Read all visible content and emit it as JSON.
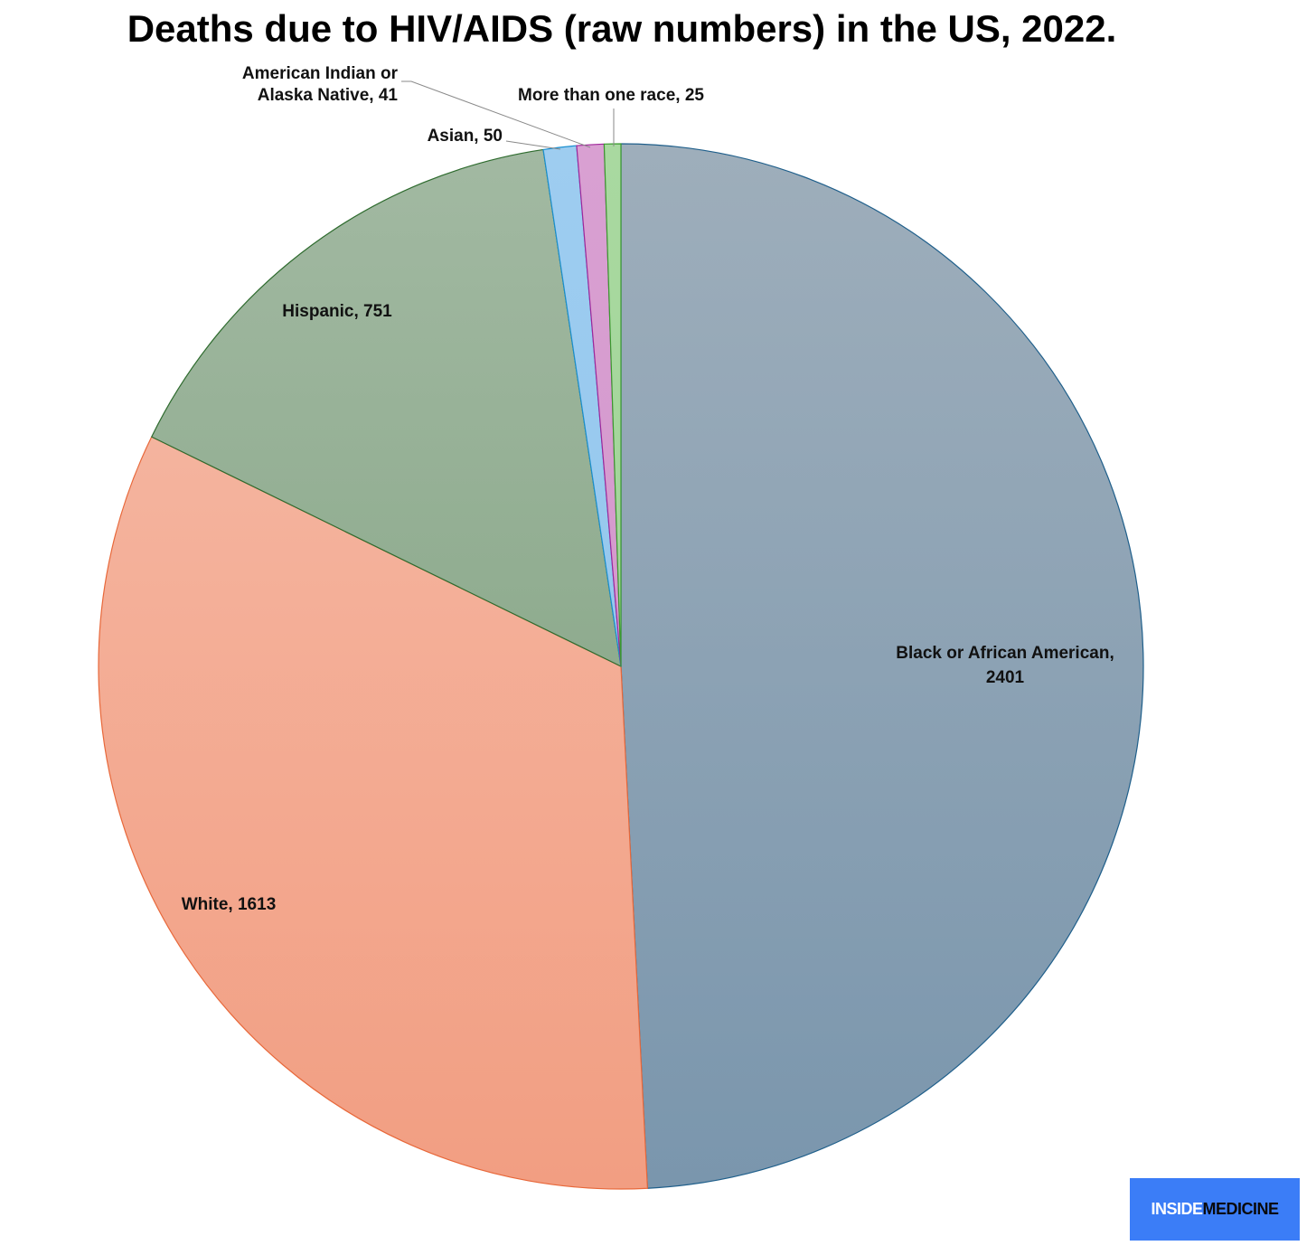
{
  "title": "Deaths due to HIV/AIDS (raw numbers) in the US, 2022.",
  "brand": {
    "left": "INSIDE",
    "right": "MEDICINE",
    "color": "#3b7df7"
  },
  "chart_data": {
    "type": "pie",
    "title": "Deaths due to HIV/AIDS (raw numbers) in the US, 2022.",
    "start": "12 o'clock",
    "direction": "clockwise",
    "slices": [
      {
        "label": "Black or African American",
        "value": 2401,
        "display_lines": [
          "Black or African American,",
          "2401"
        ],
        "fill_top": "#9eaebb",
        "fill_bottom": "#7a96ad",
        "stroke": "#1f5f8b"
      },
      {
        "label": "White",
        "value": 1613,
        "display_lines": [
          "White, 1613"
        ],
        "fill_top": "#f5bca9",
        "fill_bottom": "#f29e82",
        "stroke": "#e8683a"
      },
      {
        "label": "Hispanic",
        "value": 751,
        "display_lines": [
          "Hispanic, 751"
        ],
        "fill_top": "#a2b9a2",
        "fill_bottom": "#7b9e7b",
        "stroke": "#2e6b2e"
      },
      {
        "label": "Asian",
        "value": 50,
        "display_lines": [
          "Asian, 50"
        ],
        "fill_top": "#9ecdf0",
        "fill_bottom": "#8cc2ec",
        "stroke": "#1a8fd0"
      },
      {
        "label": "American Indian or Alaska Native",
        "value": 41,
        "display_lines": [
          "American Indian or",
          "Alaska Native, 41"
        ],
        "fill_top": "#d9a0d2",
        "fill_bottom": "#cf92c8",
        "stroke": "#a0269a"
      },
      {
        "label": "More than one race",
        "value": 25,
        "display_lines": [
          "More than one race, 25"
        ],
        "fill_top": "#a9d9a0",
        "fill_bottom": "#9bd092",
        "stroke": "#3a9a2e"
      }
    ]
  }
}
